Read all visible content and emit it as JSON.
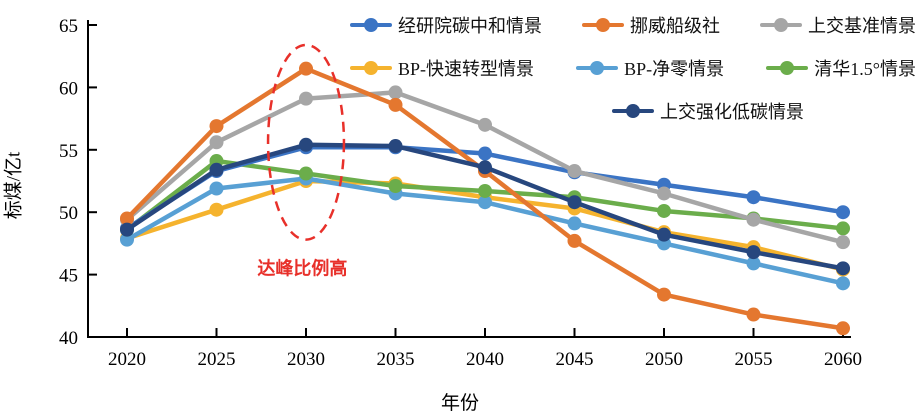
{
  "chart_data": {
    "type": "line",
    "title": "",
    "xlabel": "年份",
    "ylabel": "标煤/亿t",
    "xlim": [
      2020,
      2060
    ],
    "ylim": [
      40,
      65
    ],
    "x": [
      2020,
      2025,
      2030,
      2035,
      2040,
      2045,
      2050,
      2055,
      2060
    ],
    "y_ticks": [
      40,
      45,
      50,
      55,
      60,
      65
    ],
    "grid": false,
    "legend_position": "top-right",
    "series": [
      {
        "name": "经研院碳中和情景",
        "color": "#3b74c4",
        "values": [
          48.7,
          53.3,
          55.2,
          55.2,
          54.7,
          53.2,
          52.2,
          51.2,
          50.0
        ]
      },
      {
        "name": "挪威船级社",
        "color": "#e4772f",
        "values": [
          49.5,
          56.9,
          61.5,
          58.6,
          53.3,
          47.7,
          43.4,
          41.8,
          40.7
        ]
      },
      {
        "name": "上交基准情景",
        "color": "#a6a6a6",
        "values": [
          49.4,
          55.6,
          59.1,
          59.6,
          57.0,
          53.3,
          51.5,
          49.4,
          47.6
        ]
      },
      {
        "name": "BP-快速转型情景",
        "color": "#f5b32e",
        "values": [
          47.9,
          50.2,
          52.5,
          52.3,
          51.2,
          50.3,
          48.4,
          47.2,
          45.4
        ]
      },
      {
        "name": "BP-净零情景",
        "color": "#58a0d4",
        "values": [
          47.8,
          51.9,
          52.7,
          51.5,
          50.8,
          49.1,
          47.5,
          45.9,
          44.3
        ]
      },
      {
        "name": "清华1.5°情景",
        "color": "#6bad4b",
        "values": [
          48.6,
          54.1,
          53.1,
          52.1,
          51.7,
          51.2,
          50.1,
          49.5,
          48.7
        ]
      },
      {
        "name": "上交强化低碳情景",
        "color": "#27477e",
        "values": [
          48.6,
          53.4,
          55.4,
          55.3,
          53.6,
          50.8,
          48.2,
          46.8,
          45.5
        ]
      }
    ],
    "z_order": [
      3,
      4,
      5,
      0,
      2,
      1,
      6
    ],
    "annotations": {
      "ellipse": {
        "cx_year": 2030,
        "cy_value": 55.6,
        "rx_years": 2.12,
        "ry_values": 7.8,
        "color": "#e8302a"
      },
      "label": {
        "text": "达峰比例高",
        "x_year": 2029.8,
        "y_value": 45.0,
        "color": "#e8302a"
      }
    }
  }
}
